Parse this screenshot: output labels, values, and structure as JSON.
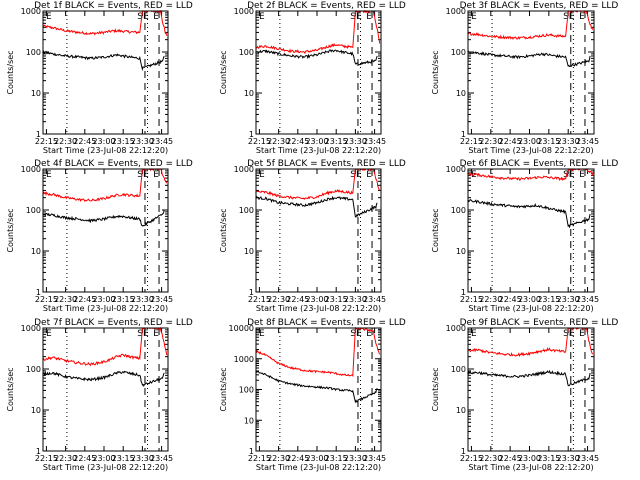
{
  "figure": {
    "start_time_label": "Start Time (23-Jul-08 22:12:20)",
    "colors": {
      "events": "#000000",
      "lld": "#ff0000",
      "axes": "#000000",
      "background": "#ffffff"
    }
  },
  "chart_data": [
    {
      "type": "line",
      "title": "Det 1f BLACK = Events, RED = LLD",
      "xlabel": "Start Time (23-Jul-08 22:12:20)",
      "ylabel": "Counts/sec",
      "xlim": [
        "22:12:20",
        "23:50:00"
      ],
      "yscale": "log",
      "ylim": [
        1,
        1000
      ],
      "xticks": [
        "22:15",
        "22:30",
        "22:45",
        "23:00",
        "23:15",
        "23:30",
        "23:45"
      ],
      "yticks": [
        "1",
        "10",
        "100",
        "1000"
      ],
      "annotations": [
        "SE",
        "E"
      ],
      "series": [
        {
          "name": "LLD",
          "color": "red",
          "x": [
            "22:12",
            "22:20",
            "22:30",
            "22:40",
            "22:50",
            "23:00",
            "23:05",
            "23:10",
            "23:15",
            "23:20",
            "23:28",
            "23:30",
            "23:44",
            "23:46",
            "23:48",
            "23:49"
          ],
          "y": [
            430,
            390,
            330,
            300,
            280,
            300,
            320,
            330,
            320,
            310,
            300,
            1000,
            1000,
            500,
            300,
            250
          ]
        },
        {
          "name": "Events",
          "color": "black",
          "x": [
            "22:12",
            "22:20",
            "22:30",
            "22:40",
            "22:50",
            "23:00",
            "23:05",
            "23:10",
            "23:15",
            "23:20",
            "23:28",
            "23:30",
            "23:46",
            "23:47"
          ],
          "y": [
            100,
            90,
            80,
            75,
            70,
            75,
            80,
            85,
            80,
            75,
            70,
            40,
            60,
            80
          ]
        }
      ]
    },
    {
      "type": "line",
      "title": "Det 2f BLACK = Events, RED = LLD",
      "xlabel": "Start Time (23-Jul-08 22:12:20)",
      "ylabel": "Counts/sec",
      "xlim": [
        "22:12:20",
        "23:50:00"
      ],
      "yscale": "log",
      "ylim": [
        1,
        1000
      ],
      "xticks": [
        "22:15",
        "22:30",
        "22:45",
        "23:00",
        "23:15",
        "23:30",
        "23:45"
      ],
      "yticks": [
        "1",
        "10",
        "100",
        "1000"
      ],
      "annotations": [
        "SE",
        "E"
      ],
      "series": [
        {
          "name": "LLD",
          "color": "red",
          "x": [
            "22:12",
            "22:20",
            "22:30",
            "22:40",
            "22:50",
            "23:00",
            "23:05",
            "23:10",
            "23:15",
            "23:20",
            "23:28",
            "23:30",
            "23:44",
            "23:46",
            "23:48",
            "23:49"
          ],
          "y": [
            130,
            140,
            120,
            105,
            100,
            110,
            125,
            140,
            150,
            140,
            130,
            1000,
            1000,
            500,
            250,
            160
          ]
        },
        {
          "name": "Events",
          "color": "black",
          "x": [
            "22:12",
            "22:20",
            "22:30",
            "22:40",
            "22:50",
            "23:00",
            "23:05",
            "23:10",
            "23:15",
            "23:20",
            "23:28",
            "23:30",
            "23:46",
            "23:47"
          ],
          "y": [
            100,
            105,
            90,
            80,
            75,
            85,
            95,
            105,
            110,
            100,
            90,
            50,
            60,
            80
          ]
        }
      ]
    },
    {
      "type": "line",
      "title": "Det 3f BLACK = Events, RED = LLD",
      "xlabel": "Start Time (23-Jul-08 22:12:20)",
      "ylabel": "Counts/sec",
      "xlim": [
        "22:12:20",
        "23:50:00"
      ],
      "yscale": "log",
      "ylim": [
        1,
        1000
      ],
      "xticks": [
        "22:15",
        "22:30",
        "22:45",
        "23:00",
        "23:15",
        "23:30",
        "23:45"
      ],
      "yticks": [
        "1",
        "10",
        "100",
        "1000"
      ],
      "annotations": [
        "SE",
        "E"
      ],
      "series": [
        {
          "name": "LLD",
          "color": "red",
          "x": [
            "22:12",
            "22:20",
            "22:30",
            "22:40",
            "22:50",
            "23:00",
            "23:05",
            "23:10",
            "23:15",
            "23:20",
            "23:28",
            "23:30",
            "23:44",
            "23:46",
            "23:48",
            "23:49"
          ],
          "y": [
            280,
            270,
            240,
            230,
            220,
            230,
            240,
            250,
            260,
            250,
            240,
            1000,
            1000,
            600,
            400,
            350
          ]
        },
        {
          "name": "Events",
          "color": "black",
          "x": [
            "22:12",
            "22:20",
            "22:30",
            "22:40",
            "22:50",
            "23:00",
            "23:05",
            "23:10",
            "23:15",
            "23:20",
            "23:28",
            "23:30",
            "23:46",
            "23:47"
          ],
          "y": [
            100,
            95,
            85,
            80,
            75,
            80,
            85,
            90,
            85,
            80,
            75,
            45,
            60,
            80
          ]
        }
      ]
    },
    {
      "type": "line",
      "title": "Det 4f BLACK = Events, RED = LLD",
      "xlabel": "Start Time (23-Jul-08 22:12:20)",
      "ylabel": "Counts/sec",
      "xlim": [
        "22:12:20",
        "23:50:00"
      ],
      "yscale": "log",
      "ylim": [
        1,
        1000
      ],
      "xticks": [
        "22:15",
        "22:30",
        "22:45",
        "23:00",
        "23:15",
        "23:30",
        "23:45"
      ],
      "yticks": [
        "1",
        "10",
        "100",
        "1000"
      ],
      "annotations": [
        "SE",
        "E"
      ],
      "series": [
        {
          "name": "LLD",
          "color": "red",
          "x": [
            "22:12",
            "22:20",
            "22:30",
            "22:40",
            "22:50",
            "23:00",
            "23:05",
            "23:10",
            "23:15",
            "23:20",
            "23:28",
            "23:30",
            "23:44",
            "23:46",
            "23:48",
            "23:49"
          ],
          "y": [
            260,
            240,
            200,
            180,
            170,
            190,
            210,
            230,
            240,
            230,
            220,
            1000,
            1000,
            700,
            500,
            450
          ]
        },
        {
          "name": "Events",
          "color": "black",
          "x": [
            "22:12",
            "22:20",
            "22:30",
            "22:40",
            "22:50",
            "23:00",
            "23:05",
            "23:10",
            "23:15",
            "23:20",
            "23:28",
            "23:30",
            "23:46",
            "23:47"
          ],
          "y": [
            80,
            75,
            65,
            60,
            55,
            60,
            65,
            70,
            70,
            65,
            60,
            40,
            80,
            100
          ]
        }
      ]
    },
    {
      "type": "line",
      "title": "Det 5f BLACK = Events, RED = LLD",
      "xlabel": "Start Time (23-Jul-08 22:12:20)",
      "ylabel": "Counts/sec",
      "xlim": [
        "22:12:20",
        "23:50:00"
      ],
      "yscale": "log",
      "ylim": [
        1,
        1000
      ],
      "xticks": [
        "22:15",
        "22:30",
        "22:45",
        "23:00",
        "23:15",
        "23:30",
        "23:45"
      ],
      "yticks": [
        "1",
        "10",
        "100",
        "1000"
      ],
      "annotations": [
        "SE",
        "E"
      ],
      "series": [
        {
          "name": "LLD",
          "color": "red",
          "x": [
            "22:12",
            "22:20",
            "22:30",
            "22:40",
            "22:50",
            "23:00",
            "23:05",
            "23:10",
            "23:15",
            "23:20",
            "23:28",
            "23:30",
            "23:44",
            "23:46",
            "23:48",
            "23:49"
          ],
          "y": [
            280,
            270,
            220,
            200,
            190,
            210,
            240,
            270,
            290,
            280,
            260,
            1000,
            1000,
            600,
            350,
            300
          ]
        },
        {
          "name": "Events",
          "color": "black",
          "x": [
            "22:12",
            "22:20",
            "22:30",
            "22:40",
            "22:50",
            "23:00",
            "23:05",
            "23:10",
            "23:15",
            "23:20",
            "23:28",
            "23:30",
            "23:46",
            "23:47"
          ],
          "y": [
            200,
            190,
            150,
            140,
            130,
            150,
            170,
            190,
            200,
            190,
            180,
            70,
            120,
            150
          ]
        }
      ]
    },
    {
      "type": "line",
      "title": "Det 6f BLACK = Events, RED = LLD",
      "xlabel": "Start Time (23-Jul-08 22:12:20)",
      "ylabel": "Counts/sec",
      "xlim": [
        "22:12:20",
        "23:50:00"
      ],
      "yscale": "log",
      "ylim": [
        1,
        1000
      ],
      "xticks": [
        "22:15",
        "22:30",
        "22:45",
        "23:00",
        "23:15",
        "23:30",
        "23:45"
      ],
      "yticks": [
        "1",
        "10",
        "100",
        "1000"
      ],
      "annotations": [
        "SE",
        "E"
      ],
      "series": [
        {
          "name": "LLD",
          "color": "red",
          "x": [
            "22:12",
            "22:20",
            "22:30",
            "22:40",
            "22:50",
            "23:00",
            "23:05",
            "23:10",
            "23:15",
            "23:20",
            "23:28",
            "23:30",
            "23:44",
            "23:46",
            "23:48",
            "23:49"
          ],
          "y": [
            750,
            720,
            650,
            600,
            570,
            590,
            620,
            640,
            620,
            600,
            560,
            1000,
            1000,
            900,
            800,
            700
          ]
        },
        {
          "name": "Events",
          "color": "black",
          "x": [
            "22:12",
            "22:20",
            "22:30",
            "22:40",
            "22:50",
            "23:00",
            "23:05",
            "23:10",
            "23:15",
            "23:20",
            "23:28",
            "23:30",
            "23:46",
            "23:47"
          ],
          "y": [
            170,
            160,
            140,
            130,
            120,
            125,
            130,
            120,
            110,
            100,
            90,
            40,
            60,
            80
          ]
        }
      ]
    },
    {
      "type": "line",
      "title": "Det 7f BLACK = Events, RED = LLD",
      "xlabel": "Start Time (23-Jul-08 22:12:20)",
      "ylabel": "Counts/sec",
      "xlim": [
        "22:12:20",
        "23:50:00"
      ],
      "yscale": "log",
      "ylim": [
        1,
        1000
      ],
      "xticks": [
        "22:15",
        "22:30",
        "22:45",
        "23:00",
        "23:15",
        "23:30",
        "23:45"
      ],
      "yticks": [
        "1",
        "10",
        "100",
        "1000"
      ],
      "annotations": [
        "SE",
        "E"
      ],
      "series": [
        {
          "name": "LLD",
          "color": "red",
          "x": [
            "22:12",
            "22:20",
            "22:30",
            "22:40",
            "22:50",
            "23:00",
            "23:05",
            "23:10",
            "23:15",
            "23:20",
            "23:28",
            "23:30",
            "23:44",
            "23:46",
            "23:48",
            "23:49"
          ],
          "y": [
            170,
            190,
            160,
            140,
            130,
            150,
            170,
            200,
            220,
            200,
            180,
            1000,
            1000,
            600,
            300,
            220
          ]
        },
        {
          "name": "Events",
          "color": "black",
          "x": [
            "22:12",
            "22:20",
            "22:30",
            "22:40",
            "22:50",
            "23:00",
            "23:05",
            "23:10",
            "23:15",
            "23:20",
            "23:28",
            "23:30",
            "23:46",
            "23:47"
          ],
          "y": [
            75,
            80,
            65,
            58,
            55,
            62,
            70,
            80,
            85,
            78,
            70,
            40,
            60,
            80
          ]
        }
      ]
    },
    {
      "type": "line",
      "title": "Det 8f BLACK = Events, RED = LLD",
      "xlabel": "Start Time (23-Jul-08 22:12:20)",
      "ylabel": "Counts/sec",
      "xlim": [
        "22:12:20",
        "23:50:00"
      ],
      "yscale": "log",
      "ylim": [
        1,
        10000
      ],
      "xticks": [
        "22:15",
        "22:30",
        "22:45",
        "23:00",
        "23:15",
        "23:30",
        "23:45"
      ],
      "yticks": [
        "1",
        "10",
        "100",
        "1000",
        "10000"
      ],
      "annotations": [
        "SE",
        "E"
      ],
      "series": [
        {
          "name": "LLD",
          "color": "red",
          "x": [
            "22:12",
            "22:20",
            "22:30",
            "22:40",
            "22:50",
            "23:00",
            "23:05",
            "23:10",
            "23:15",
            "23:20",
            "23:28",
            "23:30",
            "23:44",
            "23:46",
            "23:48",
            "23:49"
          ],
          "y": [
            1800,
            1300,
            700,
            500,
            420,
            380,
            370,
            360,
            330,
            300,
            280,
            10000,
            8000,
            3000,
            1800,
            1400
          ]
        },
        {
          "name": "Events",
          "color": "black",
          "x": [
            "22:12",
            "22:20",
            "22:30",
            "22:40",
            "22:50",
            "23:00",
            "23:05",
            "23:10",
            "23:15",
            "23:20",
            "23:28",
            "23:30",
            "23:46",
            "23:47"
          ],
          "y": [
            400,
            300,
            190,
            150,
            130,
            120,
            115,
            110,
            100,
            95,
            90,
            40,
            80,
            110
          ]
        }
      ]
    },
    {
      "type": "line",
      "title": "Det 9f BLACK = Events, RED = LLD",
      "xlabel": "Start Time (23-Jul-08 22:12:20)",
      "ylabel": "Counts/sec",
      "xlim": [
        "22:12:20",
        "23:50:00"
      ],
      "yscale": "log",
      "ylim": [
        1,
        1000
      ],
      "xticks": [
        "22:15",
        "22:30",
        "22:45",
        "23:00",
        "23:15",
        "23:30",
        "23:45"
      ],
      "yticks": [
        "1",
        "10",
        "100",
        "1000"
      ],
      "annotations": [
        "SE",
        "E"
      ],
      "series": [
        {
          "name": "LLD",
          "color": "red",
          "x": [
            "22:12",
            "22:20",
            "22:30",
            "22:40",
            "22:50",
            "23:00",
            "23:05",
            "23:10",
            "23:15",
            "23:20",
            "23:28",
            "23:30",
            "23:44",
            "23:46",
            "23:48",
            "23:49"
          ],
          "y": [
            280,
            290,
            250,
            230,
            220,
            240,
            260,
            280,
            300,
            280,
            260,
            1000,
            1000,
            500,
            280,
            230
          ]
        },
        {
          "name": "Events",
          "color": "black",
          "x": [
            "22:12",
            "22:20",
            "22:30",
            "22:40",
            "22:50",
            "23:00",
            "23:05",
            "23:10",
            "23:15",
            "23:20",
            "23:28",
            "23:30",
            "23:46",
            "23:47"
          ],
          "y": [
            80,
            82,
            72,
            68,
            65,
            70,
            75,
            80,
            85,
            80,
            75,
            40,
            60,
            80
          ]
        }
      ]
    }
  ]
}
